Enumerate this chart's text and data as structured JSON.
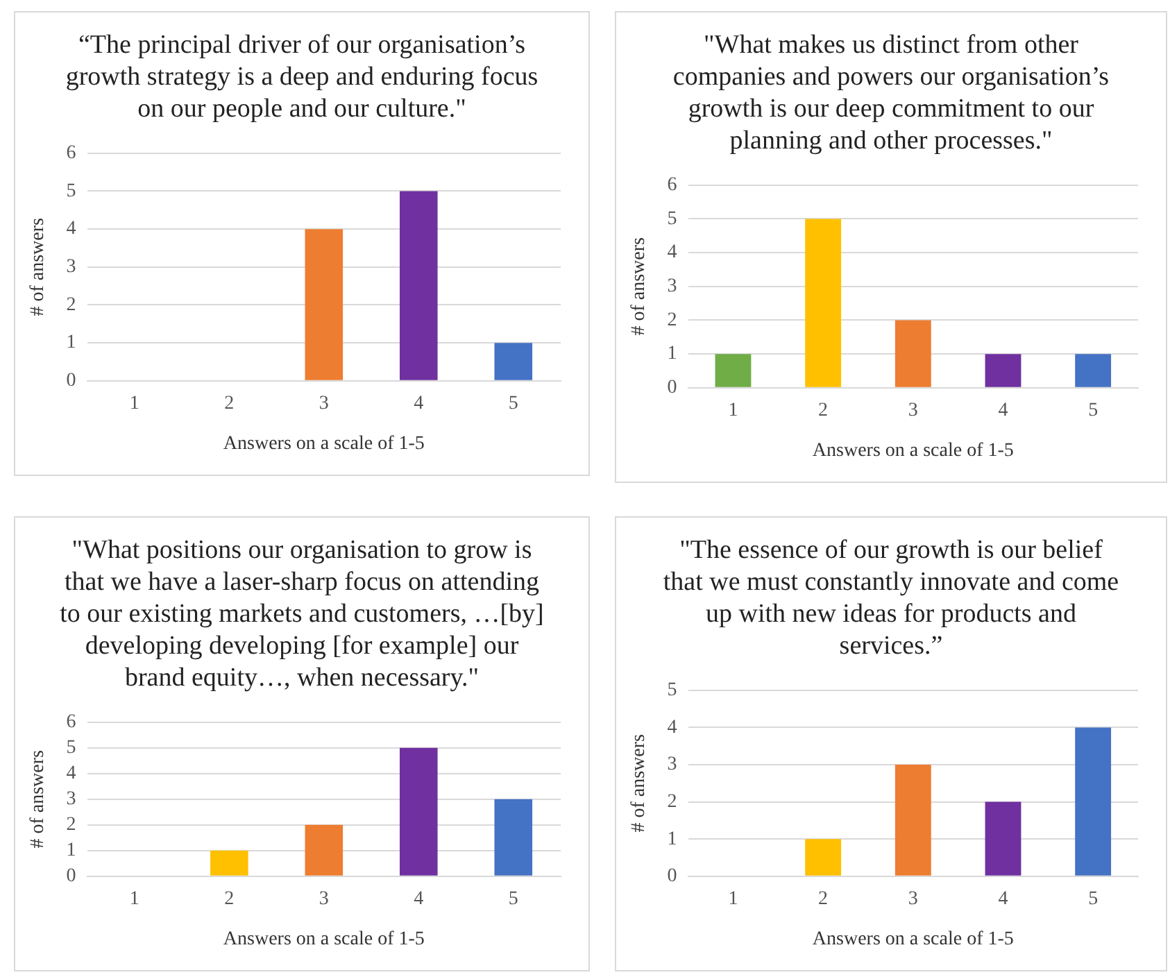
{
  "chart_data": [
    {
      "type": "bar",
      "title": "“The principal driver of our organisation’s growth strategy is a deep and enduring focus on our people and our culture.\"",
      "xlabel": "Answers on a scale of 1-5",
      "ylabel": "# of answers",
      "categories": [
        "1",
        "2",
        "3",
        "4",
        "5"
      ],
      "values": [
        0,
        0,
        4,
        5,
        1
      ],
      "colors": [
        "#70ad47",
        "#ffc000",
        "#ed7d31",
        "#7030a0",
        "#4472c4"
      ],
      "ylim": [
        0,
        6
      ],
      "yticks": [
        0,
        1,
        2,
        3,
        4,
        5,
        6
      ],
      "grid": "y"
    },
    {
      "type": "bar",
      "title": "\"What makes us distinct from other companies and powers our organisation’s growth is our deep commitment to our planning and other processes.\"",
      "xlabel": "Answers on a scale of 1-5",
      "ylabel": "# of answers",
      "categories": [
        "1",
        "2",
        "3",
        "4",
        "5"
      ],
      "values": [
        1,
        5,
        2,
        1,
        1
      ],
      "colors": [
        "#70ad47",
        "#ffc000",
        "#ed7d31",
        "#7030a0",
        "#4472c4"
      ],
      "ylim": [
        0,
        6
      ],
      "yticks": [
        0,
        1,
        2,
        3,
        4,
        5,
        6
      ],
      "grid": "y"
    },
    {
      "type": "bar",
      "title": "\"What positions our organisation to grow is that we have a laser-sharp focus on attending to our existing markets and customers, …[by] developing developing [for example] our brand equity…, when necessary.\"",
      "xlabel": "Answers on a scale of 1-5",
      "ylabel": "# of answers",
      "categories": [
        "1",
        "2",
        "3",
        "4",
        "5"
      ],
      "values": [
        0,
        1,
        2,
        5,
        3
      ],
      "colors": [
        "#70ad47",
        "#ffc000",
        "#ed7d31",
        "#7030a0",
        "#4472c4"
      ],
      "ylim": [
        0,
        6
      ],
      "yticks": [
        0,
        1,
        2,
        3,
        4,
        5,
        6
      ],
      "grid": "y"
    },
    {
      "type": "bar",
      "title": "\"The essence of our growth is our belief that we must constantly innovate and come up with new ideas for products and services.”",
      "xlabel": "Answers on a scale of 1-5",
      "ylabel": "# of answers",
      "categories": [
        "1",
        "2",
        "3",
        "4",
        "5"
      ],
      "values": [
        0,
        1,
        3,
        2,
        4
      ],
      "colors": [
        "#70ad47",
        "#ffc000",
        "#ed7d31",
        "#7030a0",
        "#4472c4"
      ],
      "ylim": [
        0,
        5
      ],
      "yticks": [
        0,
        1,
        2,
        3,
        4,
        5
      ],
      "grid": "y"
    }
  ]
}
